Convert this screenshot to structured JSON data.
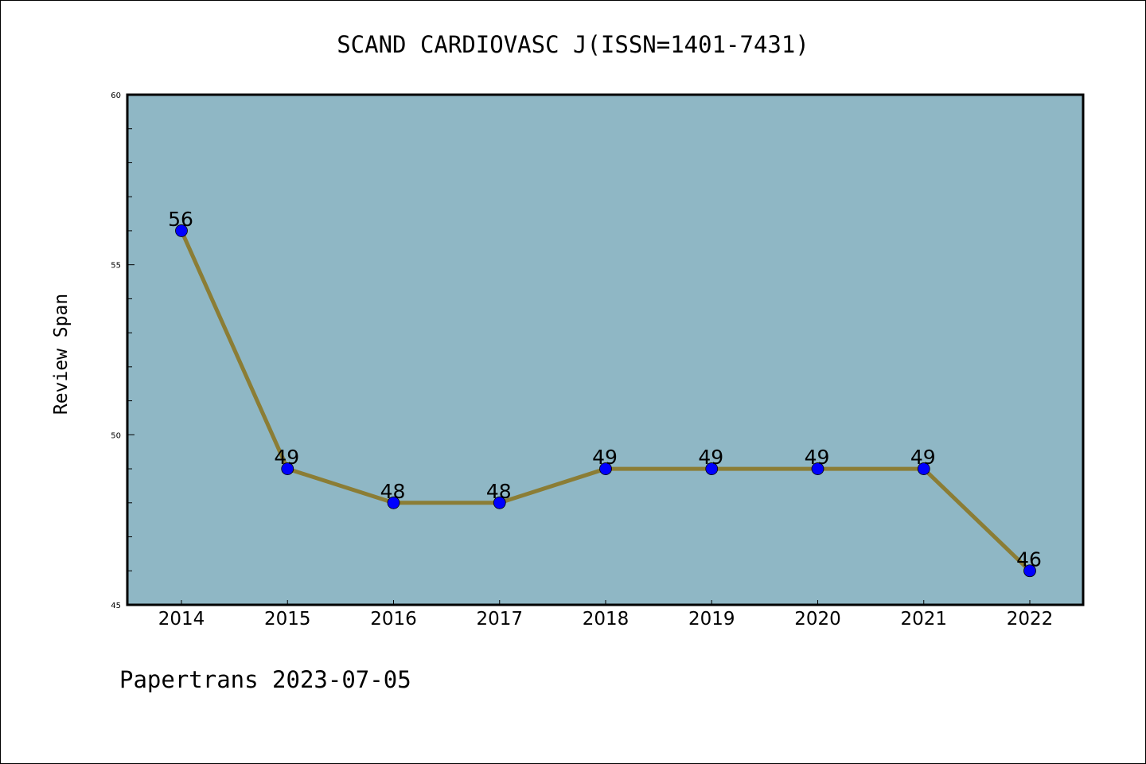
{
  "chart_data": {
    "type": "line",
    "title": "SCAND CARDIOVASC J(ISSN=1401-7431)",
    "xlabel": "",
    "ylabel": "Review Span",
    "x": [
      "2014",
      "2015",
      "2016",
      "2017",
      "2018",
      "2019",
      "2020",
      "2021",
      "2022"
    ],
    "series": [
      {
        "values": [
          56,
          49,
          48,
          48,
          49,
          49,
          49,
          49,
          46
        ]
      }
    ],
    "data_labels": [
      "56",
      "49",
      "48",
      "48",
      "49",
      "49",
      "49",
      "49",
      "46"
    ],
    "ylim": [
      45,
      60
    ],
    "yticks": [
      "45",
      "50",
      "55",
      "60"
    ],
    "grid": false,
    "legend": "none",
    "colors": {
      "plot_background": "#8fb7c5",
      "line": "#8b7d35",
      "marker": "#0000ff"
    }
  },
  "footer": {
    "text": "Papertrans 2023-07-05"
  }
}
